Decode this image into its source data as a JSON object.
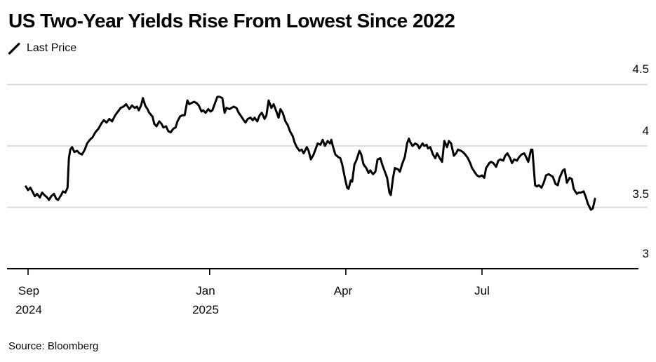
{
  "header": {
    "title": "US Two-Year Yields Rise From Lowest Since 2022"
  },
  "legend": {
    "items": [
      {
        "label": "Last Price",
        "marker": "slash-icon",
        "color": "#000000"
      }
    ]
  },
  "source": {
    "text": "Source: Bloomberg"
  },
  "colors": {
    "line": "#000000",
    "grid": "#dadada",
    "axis": "#000000",
    "text": "#0a0a0a",
    "background": "#ffffff"
  },
  "chart_data": {
    "type": "line",
    "title": "US Two-Year Yields Rise From Lowest Since 2022",
    "xlabel": "",
    "ylabel": "",
    "x_unit": "months since Sep 2024",
    "x_range_months": [
      -0.45,
      13.45
    ],
    "ylim": [
      3.0,
      4.5
    ],
    "grid": "horizontal",
    "legend_position": "top-left",
    "x_ticks": [
      {
        "m": 0,
        "line1": "Sep",
        "line2": "2024"
      },
      {
        "m": 4,
        "line1": "Jan",
        "line2": "2025"
      },
      {
        "m": 7,
        "line1": "Apr",
        "line2": ""
      },
      {
        "m": 10,
        "line1": "Jul",
        "line2": ""
      }
    ],
    "y_ticks": [
      {
        "v": 4.5,
        "label": "4.5"
      },
      {
        "v": 4.0,
        "label": "4"
      },
      {
        "v": 3.5,
        "label": "3.5"
      },
      {
        "v": 3.0,
        "label": "3"
      }
    ],
    "series": [
      {
        "name": "Last Price",
        "color": "#000000",
        "points": [
          [
            -0.05,
            3.67
          ],
          [
            0,
            3.64
          ],
          [
            0.05,
            3.66
          ],
          [
            0.11,
            3.62
          ],
          [
            0.15,
            3.59
          ],
          [
            0.2,
            3.61
          ],
          [
            0.26,
            3.58
          ],
          [
            0.31,
            3.62
          ],
          [
            0.36,
            3.6
          ],
          [
            0.42,
            3.58
          ],
          [
            0.46,
            3.56
          ],
          [
            0.51,
            3.59
          ],
          [
            0.57,
            3.61
          ],
          [
            0.62,
            3.57
          ],
          [
            0.66,
            3.56
          ],
          [
            0.73,
            3.6
          ],
          [
            0.77,
            3.63
          ],
          [
            0.82,
            3.62
          ],
          [
            0.87,
            3.66
          ],
          [
            0.9,
            3.9
          ],
          [
            0.93,
            3.97
          ],
          [
            0.97,
            3.99
          ],
          [
            1.02,
            3.95
          ],
          [
            1.08,
            3.96
          ],
          [
            1.13,
            3.94
          ],
          [
            1.19,
            3.93
          ],
          [
            1.25,
            3.97
          ],
          [
            1.3,
            4.02
          ],
          [
            1.36,
            4.05
          ],
          [
            1.42,
            4.07
          ],
          [
            1.48,
            4.11
          ],
          [
            1.55,
            4.14
          ],
          [
            1.61,
            4.18
          ],
          [
            1.67,
            4.21
          ],
          [
            1.73,
            4.19
          ],
          [
            1.79,
            4.22
          ],
          [
            1.85,
            4.2
          ],
          [
            1.92,
            4.25
          ],
          [
            1.98,
            4.28
          ],
          [
            2.04,
            4.31
          ],
          [
            2.1,
            4.32
          ],
          [
            2.16,
            4.34
          ],
          [
            2.23,
            4.3
          ],
          [
            2.29,
            4.33
          ],
          [
            2.35,
            4.31
          ],
          [
            2.4,
            4.32
          ],
          [
            2.44,
            4.29
          ],
          [
            2.49,
            4.33
          ],
          [
            2.53,
            4.39
          ],
          [
            2.58,
            4.33
          ],
          [
            2.63,
            4.3
          ],
          [
            2.67,
            4.27
          ],
          [
            2.74,
            4.24
          ],
          [
            2.78,
            4.18
          ],
          [
            2.83,
            4.16
          ],
          [
            2.89,
            4.2
          ],
          [
            2.94,
            4.18
          ],
          [
            2.98,
            4.15
          ],
          [
            3.04,
            4.16
          ],
          [
            3.09,
            4.12
          ],
          [
            3.14,
            4.11
          ],
          [
            3.2,
            4.14
          ],
          [
            3.25,
            4.15
          ],
          [
            3.29,
            4.2
          ],
          [
            3.35,
            4.24
          ],
          [
            3.4,
            4.25
          ],
          [
            3.45,
            4.25
          ],
          [
            3.51,
            4.37
          ],
          [
            3.55,
            4.34
          ],
          [
            3.6,
            4.35
          ],
          [
            3.66,
            4.36
          ],
          [
            3.71,
            4.35
          ],
          [
            3.76,
            4.33
          ],
          [
            3.82,
            4.28
          ],
          [
            3.86,
            4.29
          ],
          [
            3.91,
            4.27
          ],
          [
            3.97,
            4.3
          ],
          [
            4.02,
            4.28
          ],
          [
            4.06,
            4.29
          ],
          [
            4.13,
            4.36
          ],
          [
            4.17,
            4.4
          ],
          [
            4.22,
            4.4
          ],
          [
            4.28,
            4.39
          ],
          [
            4.33,
            4.27
          ],
          [
            4.37,
            4.31
          ],
          [
            4.44,
            4.3
          ],
          [
            4.48,
            4.31
          ],
          [
            4.53,
            4.32
          ],
          [
            4.59,
            4.31
          ],
          [
            4.64,
            4.27
          ],
          [
            4.68,
            4.25
          ],
          [
            4.75,
            4.21
          ],
          [
            4.79,
            4.19
          ],
          [
            4.84,
            4.22
          ],
          [
            4.9,
            4.23
          ],
          [
            4.95,
            4.21
          ],
          [
            4.99,
            4.23
          ],
          [
            5.05,
            4.2
          ],
          [
            5.1,
            4.25
          ],
          [
            5.15,
            4.27
          ],
          [
            5.21,
            4.22
          ],
          [
            5.25,
            4.25
          ],
          [
            5.3,
            4.37
          ],
          [
            5.36,
            4.31
          ],
          [
            5.41,
            4.34
          ],
          [
            5.46,
            4.29
          ],
          [
            5.52,
            4.23
          ],
          [
            5.56,
            4.3
          ],
          [
            5.61,
            4.27
          ],
          [
            5.67,
            4.2
          ],
          [
            5.72,
            4.17
          ],
          [
            5.77,
            4.12
          ],
          [
            5.83,
            4.08
          ],
          [
            5.87,
            4.03
          ],
          [
            5.92,
            3.99
          ],
          [
            5.98,
            3.96
          ],
          [
            6.03,
            3.97
          ],
          [
            6.07,
            3.94
          ],
          [
            6.14,
            3.99
          ],
          [
            6.18,
            3.96
          ],
          [
            6.23,
            3.89
          ],
          [
            6.29,
            3.93
          ],
          [
            6.34,
            3.98
          ],
          [
            6.38,
            4.02
          ],
          [
            6.44,
            4.01
          ],
          [
            6.49,
            4.05
          ],
          [
            6.54,
            4.0
          ],
          [
            6.6,
            4.04
          ],
          [
            6.65,
            4.02
          ],
          [
            6.68,
            4.05
          ],
          [
            6.72,
            3.99
          ],
          [
            6.77,
            3.93
          ],
          [
            6.83,
            3.91
          ],
          [
            6.88,
            3.9
          ],
          [
            6.92,
            3.85
          ],
          [
            6.99,
            3.72
          ],
          [
            7.03,
            3.66
          ],
          [
            7.06,
            3.65
          ],
          [
            7.11,
            3.72
          ],
          [
            7.14,
            3.71
          ],
          [
            7.19,
            3.85
          ],
          [
            7.23,
            3.88
          ],
          [
            7.3,
            3.96
          ],
          [
            7.34,
            3.93
          ],
          [
            7.39,
            3.85
          ],
          [
            7.45,
            3.82
          ],
          [
            7.5,
            3.78
          ],
          [
            7.54,
            3.8
          ],
          [
            7.6,
            3.77
          ],
          [
            7.65,
            3.79
          ],
          [
            7.7,
            3.89
          ],
          [
            7.76,
            3.9
          ],
          [
            7.81,
            3.84
          ],
          [
            7.85,
            3.8
          ],
          [
            7.91,
            3.74
          ],
          [
            7.96,
            3.62
          ],
          [
            7.99,
            3.6
          ],
          [
            8.04,
            3.74
          ],
          [
            8.08,
            3.82
          ],
          [
            8.15,
            3.81
          ],
          [
            8.19,
            3.79
          ],
          [
            8.24,
            3.85
          ],
          [
            8.3,
            3.91
          ],
          [
            8.35,
            4.02
          ],
          [
            8.39,
            4.06
          ],
          [
            8.42,
            4.03
          ],
          [
            8.47,
            4.0
          ],
          [
            8.53,
            4.02
          ],
          [
            8.58,
            4.01
          ],
          [
            8.62,
            3.98
          ],
          [
            8.69,
            4.02
          ],
          [
            8.73,
            4.0
          ],
          [
            8.78,
            4.01
          ],
          [
            8.81,
            3.98
          ],
          [
            8.86,
            3.99
          ],
          [
            8.92,
            3.93
          ],
          [
            8.97,
            3.9
          ],
          [
            9.01,
            3.94
          ],
          [
            9.07,
            3.9
          ],
          [
            9.12,
            3.87
          ],
          [
            9.17,
            4.04
          ],
          [
            9.23,
            3.99
          ],
          [
            9.27,
            4.04
          ],
          [
            9.32,
            4.02
          ],
          [
            9.38,
            3.92
          ],
          [
            9.43,
            3.94
          ],
          [
            9.47,
            3.97
          ],
          [
            9.54,
            3.96
          ],
          [
            9.58,
            3.95
          ],
          [
            9.63,
            3.93
          ],
          [
            9.69,
            3.9
          ],
          [
            9.74,
            3.86
          ],
          [
            9.78,
            3.82
          ],
          [
            9.85,
            3.78
          ],
          [
            9.89,
            3.76
          ],
          [
            9.94,
            3.75
          ],
          [
            10.0,
            3.76
          ],
          [
            10.05,
            3.74
          ],
          [
            10.09,
            3.82
          ],
          [
            10.16,
            3.86
          ],
          [
            10.2,
            3.87
          ],
          [
            10.25,
            3.86
          ],
          [
            10.31,
            3.83
          ],
          [
            10.36,
            3.88
          ],
          [
            10.4,
            3.89
          ],
          [
            10.47,
            3.88
          ],
          [
            10.51,
            3.92
          ],
          [
            10.56,
            3.94
          ],
          [
            10.62,
            3.9
          ],
          [
            10.66,
            3.86
          ],
          [
            10.71,
            3.89
          ],
          [
            10.77,
            3.88
          ],
          [
            10.82,
            3.91
          ],
          [
            10.87,
            3.93
          ],
          [
            10.93,
            3.94
          ],
          [
            10.97,
            3.91
          ],
          [
            11.02,
            3.87
          ],
          [
            11.08,
            3.97
          ],
          [
            11.11,
            3.97
          ],
          [
            11.14,
            3.82
          ],
          [
            11.17,
            3.68
          ],
          [
            11.21,
            3.67
          ],
          [
            11.25,
            3.68
          ],
          [
            11.31,
            3.66
          ],
          [
            11.36,
            3.7
          ],
          [
            11.41,
            3.76
          ],
          [
            11.47,
            3.77
          ],
          [
            11.51,
            3.76
          ],
          [
            11.56,
            3.75
          ],
          [
            11.62,
            3.69
          ],
          [
            11.67,
            3.68
          ],
          [
            11.71,
            3.74
          ],
          [
            11.78,
            3.8
          ],
          [
            11.82,
            3.81
          ],
          [
            11.87,
            3.7
          ],
          [
            11.93,
            3.74
          ],
          [
            11.98,
            3.73
          ],
          [
            12.02,
            3.65
          ],
          [
            12.09,
            3.61
          ],
          [
            12.13,
            3.62
          ],
          [
            12.18,
            3.62
          ],
          [
            12.24,
            3.63
          ],
          [
            12.29,
            3.58
          ],
          [
            12.33,
            3.53
          ],
          [
            12.4,
            3.48
          ],
          [
            12.44,
            3.49
          ],
          [
            12.49,
            3.57
          ]
        ]
      }
    ]
  }
}
